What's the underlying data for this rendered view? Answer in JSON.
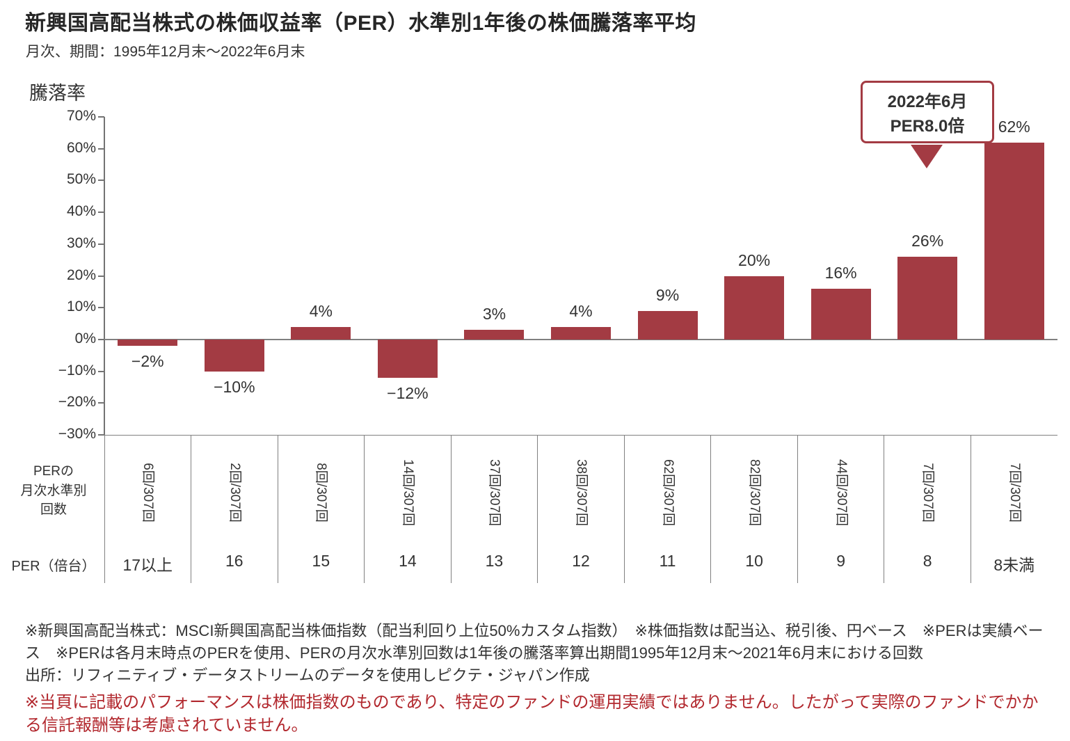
{
  "title": "新興国高配当株式の株価収益率（PER）水準別1年後の株価騰落率平均",
  "subtitle": "月次、期間：1995年12月末～2022年6月末",
  "y_axis_title": "騰落率",
  "row_headers": {
    "counts": "PERの\n月次水準別\n回数",
    "per": "PER（倍台）"
  },
  "annotation": {
    "line1": "2022年6月",
    "line2": "PER8.0倍"
  },
  "footnotes": {
    "note1": "※新興国高配当株式：MSCI新興国高配当株価指数（配当利回り上位50%カスタム指数）　※株価指数は配当込、税引後、円ベース　※PERは実績ベース　※PERは各月末時点のPERを使用、PERの月次水準別回数は1年後の騰落率算出期間1995年12月末～2021年6月末における回数",
    "source": "出所：リフィニティブ・データストリームのデータを使用しピクテ・ジャパン作成",
    "disclaimer": "※当頁に記載のパフォーマンスは株価指数のものであり、特定のファンドの運用実績ではありません。したがって実際のファンドでかかる信託報酬等は考慮されていません。"
  },
  "colors": {
    "bar": "#a33b43",
    "accent": "#a33b43",
    "disclaimer_red": "#b2282e",
    "text": "#333333",
    "axis": "#808080"
  },
  "chart_data": {
    "type": "bar",
    "title": "新興国高配当株式の株価収益率（PER）水準別1年後の株価騰落率平均",
    "subtitle": "月次、期間：1995年12月末～2022年6月末",
    "xlabel": "PER（倍台）",
    "ylabel": "騰落率",
    "ylim": [
      -30,
      70
    ],
    "grid": false,
    "legend": "none",
    "categories": [
      "17以上",
      "16",
      "15",
      "14",
      "13",
      "12",
      "11",
      "10",
      "9",
      "8",
      "8未満"
    ],
    "values": [
      -2,
      -10,
      4,
      -12,
      3,
      4,
      9,
      20,
      16,
      26,
      62
    ],
    "labels": [
      "−2%",
      "−10%",
      "4%",
      "−12%",
      "3%",
      "4%",
      "9%",
      "20%",
      "16%",
      "26%",
      "62%"
    ],
    "counts": [
      "6回/307回",
      "2回/307回",
      "8回/307回",
      "14回/307回",
      "37回/307回",
      "38回/307回",
      "62回/307回",
      "82回/307回",
      "44回/307回",
      "7回/307回",
      "7回/307回"
    ],
    "y_ticks": [
      "70%",
      "60%",
      "50%",
      "40%",
      "30%",
      "20%",
      "10%",
      "0%",
      "−10%",
      "−20%",
      "−30%"
    ],
    "annotation": {
      "text": "2022年6月 PER8.0倍",
      "target_category": "8"
    }
  }
}
